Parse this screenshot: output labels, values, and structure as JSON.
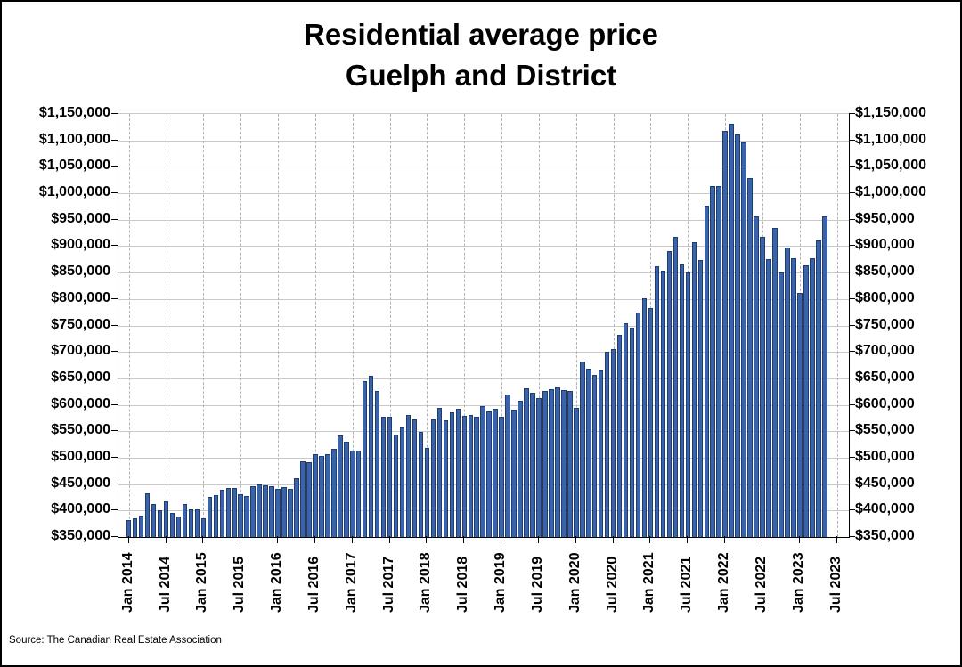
{
  "title": {
    "line1": "Residential average price",
    "line2": "Guelph and District"
  },
  "source": "Source: The Canadian Real Estate Association",
  "colors": {
    "bar_fill": "#3B63AB",
    "bar_border": "#1E3C6E",
    "grid_horizontal": "#C9C9C9",
    "grid_vertical_dashed": "#B3B3B3",
    "axis": "#000000",
    "background": "#FFFFFF",
    "text": "#000000"
  },
  "chart_data": {
    "type": "bar",
    "title": "Residential average price Guelph and District",
    "xlabel": "",
    "ylabel": "",
    "ylim": [
      350000,
      1150000
    ],
    "ytick_step": 50000,
    "grid": true,
    "legend": "none",
    "y_tick_labels": [
      "$350,000",
      "$400,000",
      "$450,000",
      "$500,000",
      "$550,000",
      "$600,000",
      "$650,000",
      "$700,000",
      "$750,000",
      "$800,000",
      "$850,000",
      "$900,000",
      "$950,000",
      "$1,000,000",
      "$1,050,000",
      "$1,100,000",
      "$1,150,000"
    ],
    "x_tick_labels": [
      "Jan 2014",
      "Jul 2014",
      "Jan 2015",
      "Jul 2015",
      "Jan 2016",
      "Jul 2016",
      "Jan 2017",
      "Jul 2017",
      "Jan 2018",
      "Jul 2018",
      "Jan 2019",
      "Jul 2019",
      "Jan 2020",
      "Jul 2020",
      "Jan 2021",
      "Jul 2021",
      "Jan 2022",
      "Jul 2022",
      "Jan 2023",
      "Jul 2023"
    ],
    "x_tick_every_months": 6,
    "x_axis_extends_to": "Jul 2023",
    "categories": [
      "Jan 2014",
      "Feb 2014",
      "Mar 2014",
      "Apr 2014",
      "May 2014",
      "Jun 2014",
      "Jul 2014",
      "Aug 2014",
      "Sep 2014",
      "Oct 2014",
      "Nov 2014",
      "Dec 2014",
      "Jan 2015",
      "Feb 2015",
      "Mar 2015",
      "Apr 2015",
      "May 2015",
      "Jun 2015",
      "Jul 2015",
      "Aug 2015",
      "Sep 2015",
      "Oct 2015",
      "Nov 2015",
      "Dec 2015",
      "Jan 2016",
      "Feb 2016",
      "Mar 2016",
      "Apr 2016",
      "May 2016",
      "Jun 2016",
      "Jul 2016",
      "Aug 2016",
      "Sep 2016",
      "Oct 2016",
      "Nov 2016",
      "Dec 2016",
      "Jan 2017",
      "Feb 2017",
      "Mar 2017",
      "Apr 2017",
      "May 2017",
      "Jun 2017",
      "Jul 2017",
      "Aug 2017",
      "Sep 2017",
      "Oct 2017",
      "Nov 2017",
      "Dec 2017",
      "Jan 2018",
      "Feb 2018",
      "Mar 2018",
      "Apr 2018",
      "May 2018",
      "Jun 2018",
      "Jul 2018",
      "Aug 2018",
      "Sep 2018",
      "Oct 2018",
      "Nov 2018",
      "Dec 2018",
      "Jan 2019",
      "Feb 2019",
      "Mar 2019",
      "Apr 2019",
      "May 2019",
      "Jun 2019",
      "Jul 2019",
      "Aug 2019",
      "Sep 2019",
      "Oct 2019",
      "Nov 2019",
      "Dec 2019",
      "Jan 2020",
      "Feb 2020",
      "Mar 2020",
      "Apr 2020",
      "May 2020",
      "Jun 2020",
      "Jul 2020",
      "Aug 2020",
      "Sep 2020",
      "Oct 2020",
      "Nov 2020",
      "Dec 2020",
      "Jan 2021",
      "Feb 2021",
      "Mar 2021",
      "Apr 2021",
      "May 2021",
      "Jun 2021",
      "Jul 2021",
      "Aug 2021",
      "Sep 2021",
      "Oct 2021",
      "Nov 2021",
      "Dec 2021",
      "Jan 2022",
      "Feb 2022",
      "Mar 2022",
      "Apr 2022",
      "May 2022",
      "Jun 2022",
      "Jul 2022",
      "Aug 2022",
      "Sep 2022",
      "Oct 2022",
      "Nov 2022",
      "Dec 2022",
      "Jan 2023",
      "Feb 2023",
      "Mar 2023",
      "Apr 2023",
      "May 2023"
    ],
    "values": [
      382000,
      386000,
      391000,
      432000,
      413000,
      400000,
      417000,
      395000,
      389000,
      412000,
      403000,
      403000,
      386000,
      426000,
      430000,
      439000,
      443000,
      443000,
      431000,
      427000,
      446000,
      450000,
      448000,
      446000,
      441000,
      445000,
      441000,
      462000,
      494000,
      491000,
      507000,
      503000,
      506000,
      517000,
      542000,
      531000,
      513000,
      514000,
      645000,
      655000,
      626000,
      578000,
      577000,
      544000,
      557000,
      581000,
      572000,
      549000,
      518000,
      572000,
      594000,
      570000,
      585000,
      593000,
      579000,
      580000,
      577000,
      597000,
      587000,
      592000,
      578000,
      620000,
      591000,
      607000,
      632000,
      623000,
      612000,
      627000,
      629000,
      633000,
      628000,
      626000,
      595000,
      681000,
      669000,
      656000,
      665000,
      701000,
      706000,
      732000,
      755000,
      746000,
      774000,
      802000,
      783000,
      862000,
      853000,
      890000,
      917000,
      865000,
      850000,
      907000,
      874000,
      976000,
      1013000,
      1013000,
      1118000,
      1132000,
      1111000,
      1096000,
      1028000,
      956000,
      918000,
      876000,
      935000,
      850000,
      897000,
      877000,
      811000,
      864000,
      878000,
      911000,
      957000
    ]
  }
}
